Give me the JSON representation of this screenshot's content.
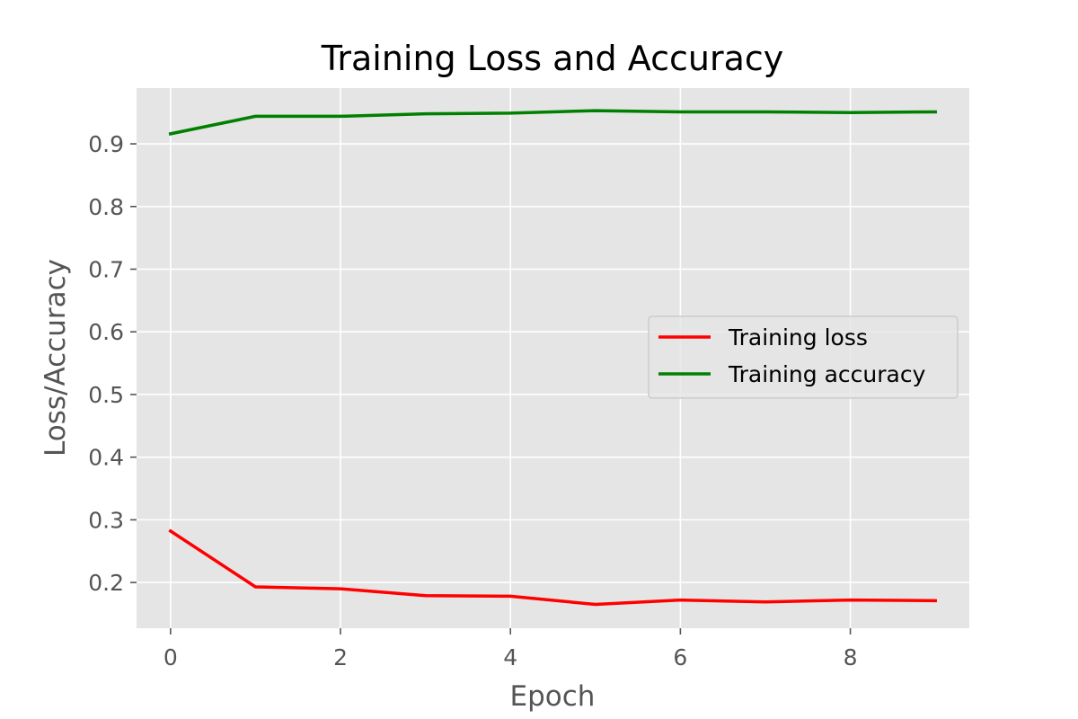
{
  "chart_data": {
    "type": "line",
    "title": "Training Loss and Accuracy",
    "xlabel": "Epoch",
    "ylabel": "Loss/Accuracy",
    "xlim": [
      -0.4,
      9.4
    ],
    "ylim": [
      0.127,
      0.989
    ],
    "xticks": [
      0,
      2,
      4,
      6,
      8
    ],
    "xtick_labels": [
      "0",
      "2",
      "4",
      "6",
      "8"
    ],
    "yticks": [
      0.2,
      0.3,
      0.4,
      0.5,
      0.6,
      0.7,
      0.8,
      0.9
    ],
    "ytick_labels": [
      "0.2",
      "0.3",
      "0.4",
      "0.5",
      "0.6",
      "0.7",
      "0.8",
      "0.9"
    ],
    "grid": true,
    "legend_position": "center-right",
    "x": [
      0,
      1,
      2,
      3,
      4,
      5,
      6,
      7,
      8,
      9
    ],
    "series": [
      {
        "name": "Training loss",
        "color": "#ff0000",
        "values": [
          0.282,
          0.193,
          0.19,
          0.179,
          0.178,
          0.165,
          0.172,
          0.169,
          0.172,
          0.171
        ]
      },
      {
        "name": "Training accuracy",
        "color": "#008000",
        "values": [
          0.916,
          0.944,
          0.944,
          0.948,
          0.949,
          0.953,
          0.951,
          0.951,
          0.95,
          0.951
        ]
      }
    ],
    "plot_background": "#e5e5e5",
    "grid_color": "#ffffff"
  }
}
